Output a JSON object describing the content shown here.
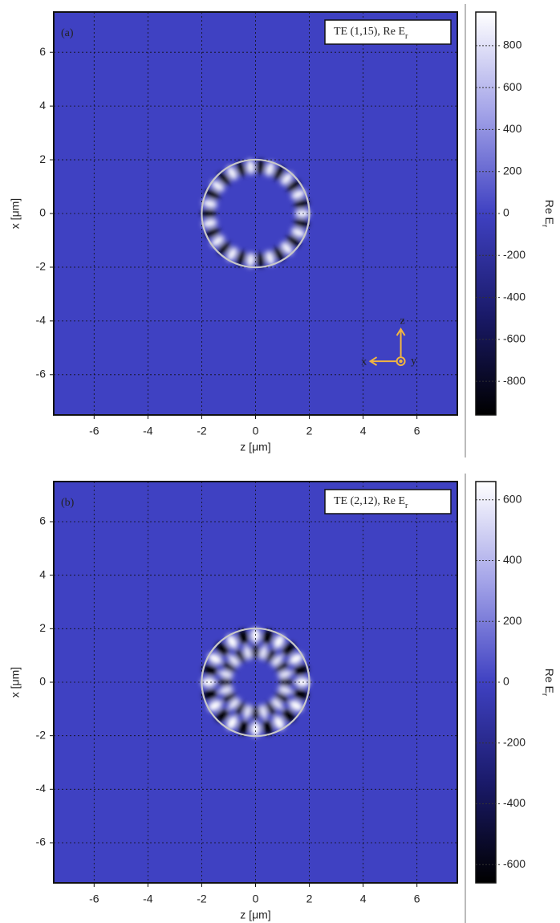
{
  "chart_data": [
    {
      "type": "heatmap",
      "panel_label": "(a)",
      "legend": {
        "text": "TE (1,15), Re E",
        "subscript": "r"
      },
      "xlabel": "z [μm]",
      "ylabel": "x [μm]",
      "xlim": [
        -7.5,
        7.5
      ],
      "ylim": [
        -7.5,
        7.5
      ],
      "xticks": [
        -6,
        -4,
        -2,
        0,
        2,
        4,
        6
      ],
      "yticks": [
        -6,
        -4,
        -2,
        0,
        2,
        4,
        6
      ],
      "grid": true,
      "resonator_radius": 2,
      "radial_order": 1,
      "azimuthal_order": 15,
      "colormap": [
        "#000000",
        "#1a1a6a",
        "#3f41c2",
        "#a3a3e8",
        "#ffffff"
      ],
      "colorbar": {
        "label": "Re E",
        "subscript": "r",
        "lim": [
          -960,
          960
        ],
        "ticks": [
          -800,
          -600,
          -400,
          -200,
          0,
          200,
          400,
          600,
          800
        ]
      },
      "axes_glyph": {
        "up": "z",
        "left": "x",
        "out": "y",
        "color": "#f2b540"
      }
    },
    {
      "type": "heatmap",
      "panel_label": "(b)",
      "legend": {
        "text": "TE (2,12), Re E",
        "subscript": "r"
      },
      "xlabel": "z [μm]",
      "ylabel": "x [μm]",
      "xlim": [
        -7.5,
        7.5
      ],
      "ylim": [
        -7.5,
        7.5
      ],
      "xticks": [
        -6,
        -4,
        -2,
        0,
        2,
        4,
        6
      ],
      "yticks": [
        -6,
        -4,
        -2,
        0,
        2,
        4,
        6
      ],
      "grid": true,
      "resonator_radius": 2,
      "radial_order": 2,
      "azimuthal_order": 12,
      "colormap": [
        "#000000",
        "#1a1a6a",
        "#3f41c2",
        "#a3a3e8",
        "#ffffff"
      ],
      "colorbar": {
        "label": "Re E",
        "subscript": "r",
        "lim": [
          -660,
          660
        ],
        "ticks": [
          -600,
          -400,
          -200,
          0,
          200,
          400,
          600
        ]
      }
    }
  ]
}
